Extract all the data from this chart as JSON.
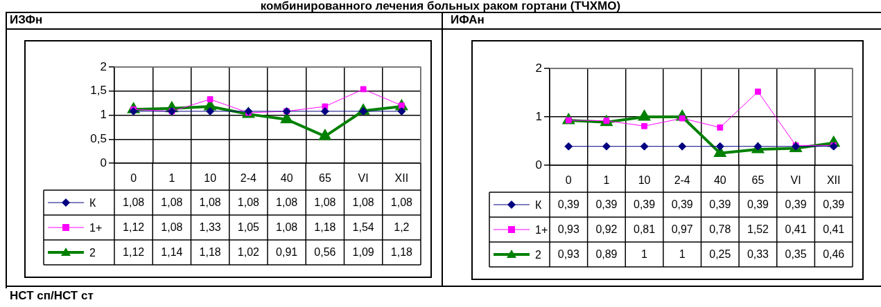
{
  "chart_data": [
    {
      "type": "other",
      "title": "комбинированного лечения больных раком гортани (ТЧХМО)"
    },
    {
      "type": "line",
      "title": "ИЗФн",
      "categories": [
        "0",
        "1",
        "10",
        "2-4",
        "40",
        "65",
        "VI",
        "XII"
      ],
      "series": [
        {
          "name": "К",
          "color": "#000080",
          "marker": "diamond",
          "values": [
            1.08,
            1.08,
            1.08,
            1.08,
            1.08,
            1.08,
            1.08,
            1.08
          ],
          "value_labels": [
            "1,08",
            "1,08",
            "1,08",
            "1,08",
            "1,08",
            "1,08",
            "1,08",
            "1,08"
          ]
        },
        {
          "name": "1+",
          "color": "#ff00ff",
          "marker": "square",
          "values": [
            1.12,
            1.08,
            1.33,
            1.05,
            1.08,
            1.18,
            1.54,
            1.2
          ],
          "value_labels": [
            "1,12",
            "1,08",
            "1,33",
            "1,05",
            "1,08",
            "1,18",
            "1,54",
            "1,2"
          ]
        },
        {
          "name": "2",
          "color": "#008000",
          "marker": "triangle",
          "values": [
            1.12,
            1.14,
            1.18,
            1.02,
            0.91,
            0.56,
            1.09,
            1.18
          ],
          "value_labels": [
            "1,12",
            "1,14",
            "1,18",
            "1,02",
            "0,91",
            "0,56",
            "1,09",
            "1,18"
          ]
        }
      ],
      "ylim": [
        0,
        2
      ],
      "yticks": [
        0,
        {
          "value": 0.5,
          "label": "0,5"
        },
        1,
        {
          "value": 1.5,
          "label": "1,5"
        },
        2
      ],
      "grid": true,
      "legend": "bottom"
    },
    {
      "type": "line",
      "title": "ИФАн",
      "categories": [
        "0",
        "1",
        "10",
        "2-4",
        "40",
        "65",
        "VI",
        "XII"
      ],
      "series": [
        {
          "name": "К",
          "color": "#000080",
          "marker": "diamond",
          "values": [
            0.39,
            0.39,
            0.39,
            0.39,
            0.39,
            0.39,
            0.39,
            0.39
          ],
          "value_labels": [
            "0,39",
            "0,39",
            "0,39",
            "0,39",
            "0,39",
            "0,39",
            "0,39",
            "0,39"
          ]
        },
        {
          "name": "1+",
          "color": "#ff00ff",
          "marker": "square",
          "values": [
            0.93,
            0.92,
            0.81,
            0.97,
            0.78,
            1.52,
            0.41,
            0.41
          ],
          "value_labels": [
            "0,93",
            "0,92",
            "0,81",
            "0,97",
            "0,78",
            "1,52",
            "0,41",
            "0,41"
          ]
        },
        {
          "name": "2",
          "color": "#008000",
          "marker": "triangle",
          "values": [
            0.93,
            0.89,
            1,
            1,
            0.25,
            0.33,
            0.35,
            0.46
          ],
          "value_labels": [
            "0,93",
            "0,89",
            "1",
            "1",
            "0,25",
            "0,33",
            "0,35",
            "0,46"
          ]
        }
      ],
      "ylim": [
        0,
        2
      ],
      "yticks": [
        0,
        1,
        2
      ],
      "grid": true,
      "legend": "bottom"
    },
    {
      "type": "other",
      "title": "НСТ сп/НСТ ст"
    }
  ]
}
